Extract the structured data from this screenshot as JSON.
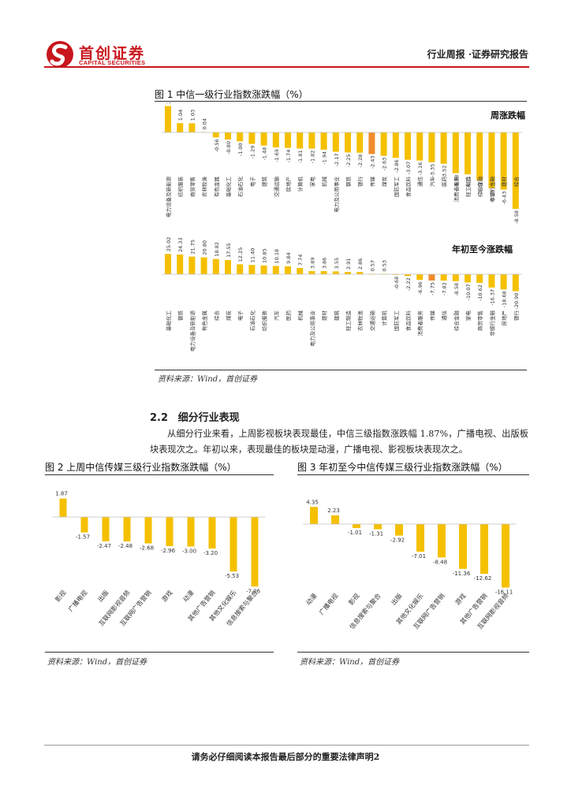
{
  "header": {
    "logo_cn": "首创证券",
    "logo_en": "CAPITAL SECURITIES",
    "report_type": "行业周报 ·证券研究报告"
  },
  "colors": {
    "brand": "#c8161d",
    "bar": "#f5c000",
    "highlight": "#f08c2b",
    "neutral": "#bfbfbf"
  },
  "figure1": {
    "title": "图 1 中信一级行业指数涨跌幅（%）",
    "source": "资料来源：Wind，首创证券",
    "chart_data": [
      {
        "type": "bar",
        "title": "周涨跌幅",
        "categories": [
          "电力设备及新能源",
          "纺织服装",
          "商贸零售",
          "农林牧渔",
          "有色金属",
          "基础化工",
          "石油石化",
          "电子",
          "建筑",
          "交通运输",
          "房地产",
          "计算机",
          "家电",
          "机械",
          "电力及公用事业",
          "钢铁",
          "银行",
          "传媒",
          "煤炭",
          "国防军工",
          "食品饮料",
          "通信",
          "汽车",
          "医药",
          "消费者服务",
          "轻工制造",
          "综合金融",
          "非银行金融",
          "建材",
          "综合"
        ],
        "values": [
          2.96,
          1.04,
          1.03,
          0.04,
          -0.56,
          -0.8,
          -1.0,
          -1.29,
          -1.48,
          -1.69,
          -1.74,
          -1.81,
          -1.82,
          -1.94,
          -2.17,
          -2.25,
          -2.28,
          -2.43,
          -2.63,
          -2.86,
          -3.07,
          -3.16,
          -3.35,
          -3.52,
          -4.58,
          -4.71,
          -5.37,
          -6.25,
          -6.43,
          -8.58
        ],
        "highlight_index": 17
      },
      {
        "type": "bar",
        "title": "年初至今涨跌幅",
        "categories": [
          "基础化工",
          "钢铁",
          "电力设备及新能源",
          "有色金属",
          "综合",
          "煤炭",
          "电子",
          "石油石化",
          "纺织服装",
          "汽车",
          "医药",
          "机械",
          "电力及公用事业",
          "建材",
          "建筑",
          "轻工制造",
          "农林牧渔",
          "交通运输",
          "计算机",
          "国防军工",
          "食品饮料",
          "消费者服务",
          "传媒",
          "通信",
          "综合金融",
          "家电",
          "商贸零售",
          "非银行金融",
          "房地产",
          "银行"
        ],
        "values": [
          25.02,
          24.33,
          21.75,
          20.8,
          18.82,
          17.55,
          12.25,
          11.4,
          10.85,
          10.18,
          9.84,
          7.74,
          3.89,
          3.86,
          3.55,
          2.91,
          2.86,
          0.57,
          0.53,
          -0.68,
          -2.22,
          -6.96,
          -7.75,
          -7.82,
          -8.58,
          -10.07,
          -10.62,
          -16.37,
          -18.68,
          -20.9
        ],
        "highlight_index": 22
      }
    ]
  },
  "section": {
    "number": "2.2",
    "title": "细分行业表现",
    "text": "从细分行业来看，上周影视板块表现最佳，中信三级指数涨跌幅 1.87%，广播电视、出版板块表现次之。年初以来，表现最佳的板块是动漫，广播电视、影视板块表现次之。"
  },
  "figure2": {
    "title": "图 2 上周中信传媒三级行业指数涨跌幅（%）",
    "source": "资料来源：Wind，首创证券",
    "chart_data": {
      "type": "bar",
      "categories": [
        "影视",
        "广播电视",
        "出版",
        "互联网影视音频",
        "互联网广告营销",
        "游戏",
        "动漫",
        "其他广告营销",
        "其他文化娱乐",
        "信息搜索与聚合"
      ],
      "values": [
        1.87,
        -1.57,
        -2.47,
        -2.48,
        -2.68,
        -2.96,
        -3.0,
        -3.2,
        -5.53,
        -7.06
      ]
    }
  },
  "figure3": {
    "title": "图 3 年初至今中信传媒三级行业指数涨跌幅（%）",
    "source": "资料来源：Wind，首创证券",
    "chart_data": {
      "type": "bar",
      "categories": [
        "动漫",
        "广播电视",
        "影视",
        "信息搜索与聚合",
        "出版",
        "其他文化娱乐",
        "互联网广告营销",
        "游戏",
        "其他广告营销",
        "互联网影视音频"
      ],
      "values": [
        4.35,
        2.23,
        -1.01,
        -1.31,
        -2.92,
        -7.01,
        -8.48,
        -11.36,
        -12.62,
        -16.11
      ]
    }
  },
  "footer": {
    "text": "请务必仔细阅读本报告最后部分的重要法律声明2"
  }
}
